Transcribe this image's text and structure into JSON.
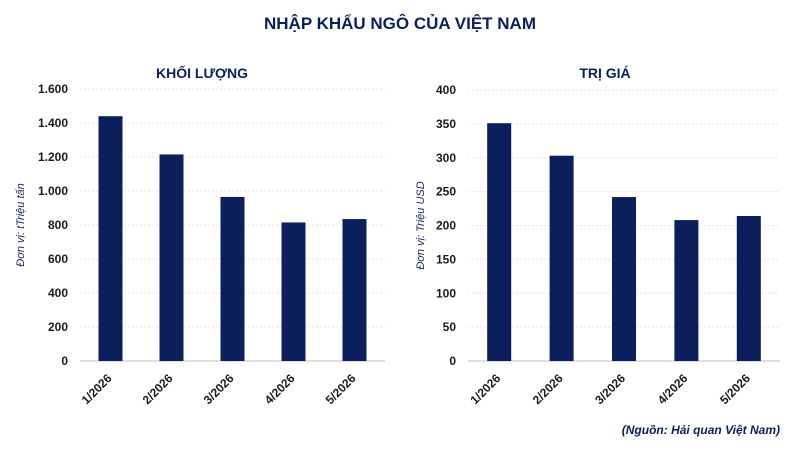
{
  "title": "NHẬP KHẨU NGÔ CỦA VIỆT NAM",
  "source": "(Nguồn: Hải quan Việt Nam)",
  "colors": {
    "bar": "#0b1f5c",
    "title": "#0b1f5c"
  },
  "chart_data": [
    {
      "type": "bar",
      "title": "KHỐI LƯỢNG",
      "ylabel": "Đơn vị: tTriệu tấn",
      "categories": [
        "1/2026",
        "2/2026",
        "3/2026",
        "4/2026",
        "5/2026"
      ],
      "values": [
        1440,
        1215,
        965,
        815,
        835
      ],
      "ylim": [
        0,
        1600
      ],
      "yticks": [
        {
          "value": 0,
          "label": "0"
        },
        {
          "value": 200,
          "label": "200"
        },
        {
          "value": 400,
          "label": "400"
        },
        {
          "value": 600,
          "label": "600"
        },
        {
          "value": 800,
          "label": "800"
        },
        {
          "value": 1000,
          "label": "1.000"
        },
        {
          "value": 1200,
          "label": "1.200"
        },
        {
          "value": 1400,
          "label": "1.400"
        },
        {
          "value": 1600,
          "label": "1.600"
        }
      ],
      "grid": true,
      "legend": "none"
    },
    {
      "type": "bar",
      "title": "TRỊ GIÁ",
      "ylabel": "Đơn vị: Triệu USD",
      "categories": [
        "1/2026",
        "2/2026",
        "3/2026",
        "4/2026",
        "5/2026"
      ],
      "values": [
        351,
        303,
        242,
        208,
        214
      ],
      "ylim": [
        0,
        400
      ],
      "yticks": [
        {
          "value": 0,
          "label": "0"
        },
        {
          "value": 50,
          "label": "50"
        },
        {
          "value": 100,
          "label": "100"
        },
        {
          "value": 150,
          "label": "150"
        },
        {
          "value": 200,
          "label": "200"
        },
        {
          "value": 250,
          "label": "250"
        },
        {
          "value": 300,
          "label": "300"
        },
        {
          "value": 350,
          "label": "350"
        },
        {
          "value": 400,
          "label": "400"
        }
      ],
      "grid": true,
      "legend": "none"
    }
  ]
}
